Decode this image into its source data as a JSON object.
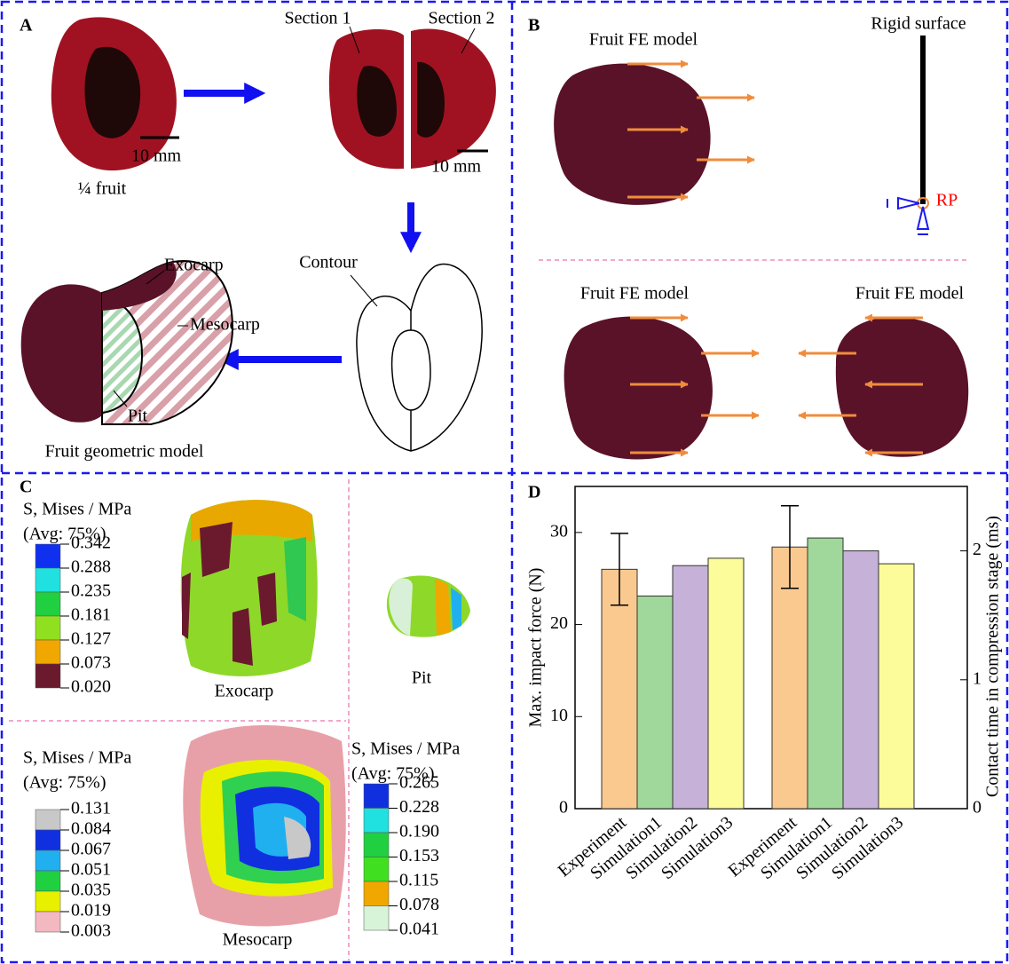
{
  "panels": {
    "A": {
      "label": "A",
      "quarter_fruit": "¼ fruit",
      "scale_bar_1": "10 mm",
      "section_1": "Section 1",
      "section_2": "Section 2",
      "scale_bar_2": "10 mm",
      "contour": "Contour",
      "exocarp": "Exocarp",
      "mesocarp": "Mesocarp",
      "pit": "Pit",
      "caption": "Fruit geometric model"
    },
    "B": {
      "label": "B",
      "model_1": "Fruit FE model",
      "rigid_surface": "Rigid surface",
      "reference_point": "RP",
      "model_2": "Fruit FE model",
      "model_3": "Fruit FE model"
    },
    "C": {
      "label": "C",
      "exocarp_caption": "Exocarp",
      "pit_caption": "Pit",
      "mesocarp_caption": "Mesocarp",
      "legends": [
        {
          "title": "S, Mises / MPa",
          "subtitle": "(Avg: 75%)",
          "labels": [
            "0.342",
            "0.288",
            "0.235",
            "0.181",
            "0.127",
            "0.073",
            "0.020"
          ],
          "colors": [
            "#1030f0",
            "#20e0e0",
            "#20d040",
            "#90e020",
            "#f0a800",
            "#6b1a2e"
          ]
        },
        {
          "title": "S, Mises / MPa",
          "subtitle": "(Avg: 75%)",
          "labels": [
            "0.131",
            "0.084",
            "0.067",
            "0.051",
            "0.035",
            "0.019",
            "0.003"
          ],
          "colors": [
            "#c8c8c8",
            "#1030e0",
            "#20b0f0",
            "#20d040",
            "#e8f000",
            "#f4b8c0"
          ]
        },
        {
          "title": "S, Mises / MPa",
          "subtitle": "(Avg: 75%)",
          "labels": [
            "0.265",
            "0.228",
            "0.190",
            "0.153",
            "0.115",
            "0.078",
            "0.041"
          ],
          "colors": [
            "#1030e0",
            "#20e0e0",
            "#20d040",
            "#40e020",
            "#f0a800",
            "#d8f4d8"
          ]
        }
      ]
    },
    "D": {
      "label": "D"
    }
  },
  "chart_data": {
    "type": "bar",
    "ylabel": "Max. impact force (N)",
    "y2label": "Contact time in compression stage (ms)",
    "ylim": [
      0,
      35
    ],
    "yticks": [
      0,
      10,
      20,
      30
    ],
    "y2lim": [
      0,
      2.5
    ],
    "y2ticks": [
      0,
      1,
      2
    ],
    "groups": [
      {
        "axis": "y",
        "categories": [
          "Experiment",
          "Simulation1",
          "Simulation2",
          "Simulation3"
        ],
        "values": [
          26,
          23.1,
          26.4,
          27.2
        ],
        "errors": [
          3.9,
          null,
          null,
          null
        ],
        "colors": [
          "#f9c98f",
          "#9fd89a",
          "#c6b2d8",
          "#fcfc9a"
        ]
      },
      {
        "axis": "y2",
        "categories": [
          "Experiment",
          "Simulation1",
          "Simulation2",
          "Simulation3"
        ],
        "values": [
          2.03,
          2.1,
          2.0,
          1.9
        ],
        "errors": [
          0.32,
          null,
          null,
          null
        ],
        "colors": [
          "#f9c98f",
          "#9fd89a",
          "#c6b2d8",
          "#fcfc9a"
        ]
      }
    ]
  }
}
